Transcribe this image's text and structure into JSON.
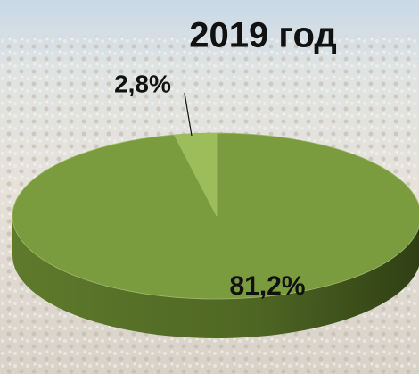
{
  "chart_data": {
    "type": "pie3d",
    "title": "2019 год",
    "values": [
      81.2,
      2.8
    ],
    "value_labels": [
      "81,2%",
      "2,8%"
    ],
    "colors": [
      "#7b9b3f",
      "#9dbd5a"
    ]
  }
}
